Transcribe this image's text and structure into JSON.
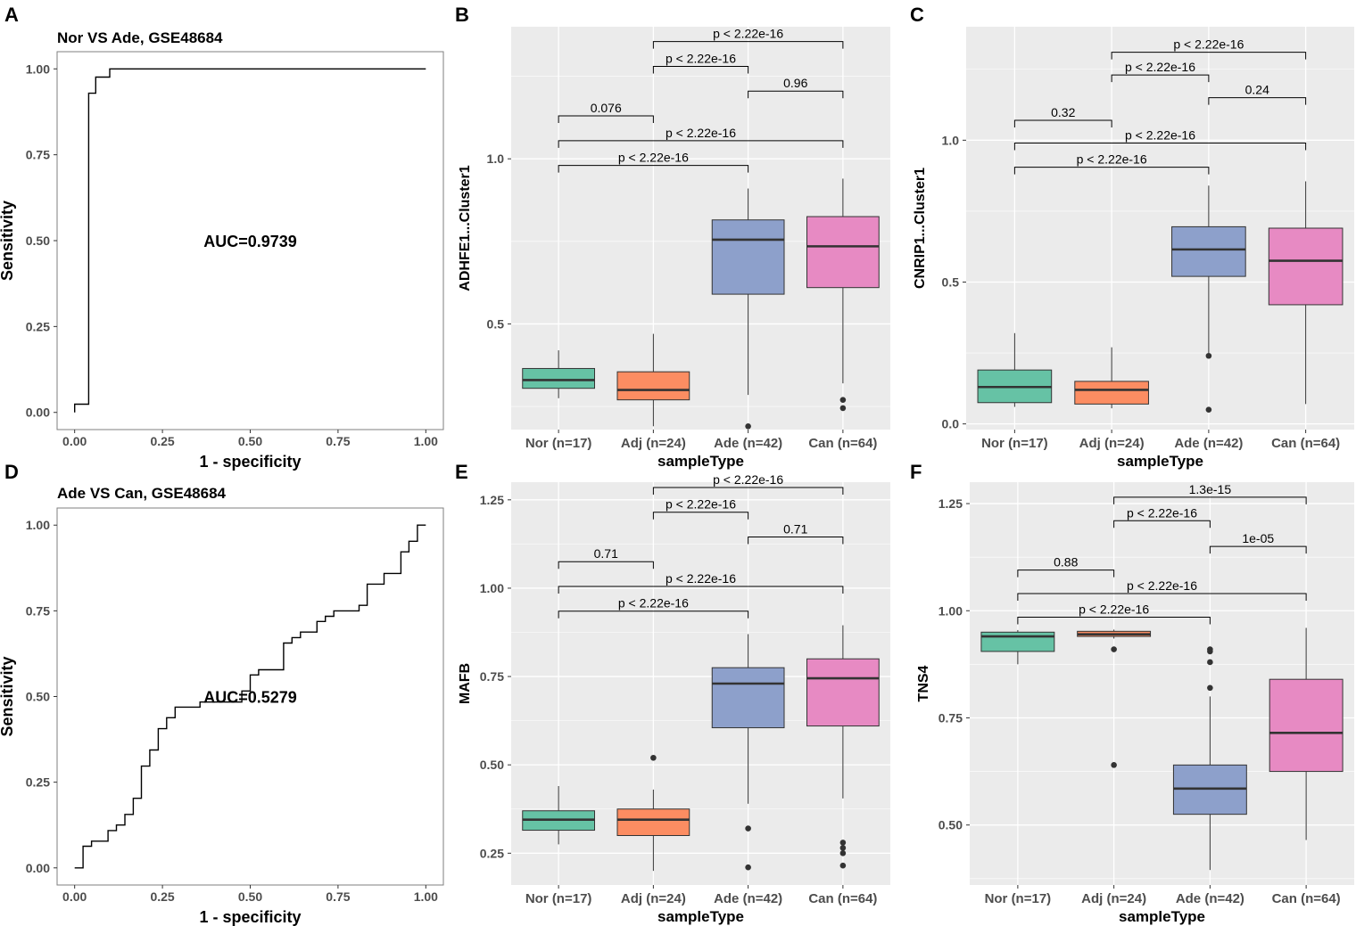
{
  "figure": {
    "colors": {
      "panel_bg": "#EBEBEB",
      "grid": "#FFFFFF",
      "axis_text": "#4D4D4D",
      "line": "#000000",
      "box_outline": "#333333",
      "group_fills": [
        "#66C2A5",
        "#FC8D62",
        "#8DA0CB",
        "#E78AC3"
      ]
    }
  },
  "chart_data": [
    {
      "id": "A",
      "type": "roc",
      "panel_label": "A",
      "title": "Nor VS Ade, GSE48684",
      "xlabel": "1 - specificity",
      "ylabel": "Sensitivity",
      "xlim": [
        0,
        1
      ],
      "ylim": [
        0,
        1
      ],
      "xticks": [
        "0.00",
        "0.25",
        "0.50",
        "0.75",
        "1.00"
      ],
      "yticks": [
        "0.00",
        "0.25",
        "0.50",
        "0.75",
        "1.00"
      ],
      "annotation": "AUC=0.9739",
      "annotation_at": [
        0.5,
        0.5
      ],
      "points": [
        [
          0,
          0
        ],
        [
          0,
          0.024
        ],
        [
          0.04,
          0.024
        ],
        [
          0.04,
          0.929
        ],
        [
          0.06,
          0.929
        ],
        [
          0.06,
          0.976
        ],
        [
          0.1,
          0.976
        ],
        [
          0.1,
          1
        ],
        [
          1,
          1
        ]
      ]
    },
    {
      "id": "B",
      "type": "boxplot",
      "panel_label": "B",
      "xlabel": "sampleType",
      "ylabel": "ADHFE1...Cluster1",
      "ylim": [
        0.18,
        1.4
      ],
      "yticks": [
        0.5,
        1.0
      ],
      "ytick_labels": [
        "0.5",
        "1.0"
      ],
      "categories": [
        "Nor (n=17)",
        "Adj (n=24)",
        "Ade (n=42)",
        "Can (n=64)"
      ],
      "boxes": [
        {
          "whisker_low": 0.275,
          "q1": 0.305,
          "median": 0.33,
          "q3": 0.365,
          "whisker_high": 0.42,
          "outliers": []
        },
        {
          "whisker_low": 0.19,
          "q1": 0.27,
          "median": 0.3,
          "q3": 0.355,
          "whisker_high": 0.47,
          "outliers": []
        },
        {
          "whisker_low": 0.285,
          "q1": 0.59,
          "median": 0.755,
          "q3": 0.815,
          "whisker_high": 0.91,
          "outliers": [
            0.19
          ]
        },
        {
          "whisker_low": 0.32,
          "q1": 0.61,
          "median": 0.735,
          "q3": 0.825,
          "whisker_high": 0.94,
          "outliers": [
            0.27,
            0.245
          ]
        }
      ],
      "comparisons": [
        {
          "from": 0,
          "to": 2,
          "label": "p < 2.22e-16",
          "y": 0.98
        },
        {
          "from": 0,
          "to": 3,
          "label": "p < 2.22e-16",
          "y": 1.055
        },
        {
          "from": 0,
          "to": 1,
          "label": "0.076",
          "y": 1.13
        },
        {
          "from": 2,
          "to": 3,
          "label": "0.96",
          "y": 1.205
        },
        {
          "from": 1,
          "to": 2,
          "label": "p < 2.22e-16",
          "y": 1.28
        },
        {
          "from": 1,
          "to": 3,
          "label": "p < 2.22e-16",
          "y": 1.355
        }
      ]
    },
    {
      "id": "C",
      "type": "boxplot",
      "panel_label": "C",
      "xlabel": "sampleType",
      "ylabel": "CNRIP1...Cluster1",
      "ylim": [
        -0.02,
        1.4
      ],
      "yticks": [
        0.0,
        0.5,
        1.0
      ],
      "ytick_labels": [
        "0.0",
        "0.5",
        "1.0"
      ],
      "categories": [
        "Nor (n=17)",
        "Adj (n=24)",
        "Ade (n=42)",
        "Can (n=64)"
      ],
      "boxes": [
        {
          "whisker_low": 0.06,
          "q1": 0.075,
          "median": 0.13,
          "q3": 0.19,
          "whisker_high": 0.32,
          "outliers": []
        },
        {
          "whisker_low": 0.055,
          "q1": 0.07,
          "median": 0.12,
          "q3": 0.15,
          "whisker_high": 0.27,
          "outliers": []
        },
        {
          "whisker_low": 0.25,
          "q1": 0.52,
          "median": 0.615,
          "q3": 0.695,
          "whisker_high": 0.84,
          "outliers": [
            0.24,
            0.05
          ]
        },
        {
          "whisker_low": 0.07,
          "q1": 0.42,
          "median": 0.575,
          "q3": 0.69,
          "whisker_high": 0.855,
          "outliers": []
        }
      ],
      "comparisons": [
        {
          "from": 0,
          "to": 2,
          "label": "p < 2.22e-16",
          "y": 0.905
        },
        {
          "from": 0,
          "to": 3,
          "label": "p < 2.22e-16",
          "y": 0.99
        },
        {
          "from": 0,
          "to": 1,
          "label": "0.32",
          "y": 1.07
        },
        {
          "from": 2,
          "to": 3,
          "label": "0.24",
          "y": 1.15
        },
        {
          "from": 1,
          "to": 2,
          "label": "p < 2.22e-16",
          "y": 1.23
        },
        {
          "from": 1,
          "to": 3,
          "label": "p < 2.22e-16",
          "y": 1.31
        }
      ]
    },
    {
      "id": "D",
      "type": "roc",
      "panel_label": "D",
      "title": "Ade VS Can, GSE48684",
      "xlabel": "1 - specificity",
      "ylabel": "Sensitivity",
      "xlim": [
        0,
        1
      ],
      "ylim": [
        0,
        1
      ],
      "xticks": [
        "0.00",
        "0.25",
        "0.50",
        "0.75",
        "1.00"
      ],
      "yticks": [
        "0.00",
        "0.25",
        "0.50",
        "0.75",
        "1.00"
      ],
      "annotation": "AUC=0.5279",
      "annotation_at": [
        0.5,
        0.5
      ],
      "points": [
        [
          0,
          0
        ],
        [
          0.024,
          0
        ],
        [
          0.024,
          0.063
        ],
        [
          0.048,
          0.063
        ],
        [
          0.048,
          0.078
        ],
        [
          0.095,
          0.078
        ],
        [
          0.095,
          0.109
        ],
        [
          0.119,
          0.109
        ],
        [
          0.119,
          0.125
        ],
        [
          0.143,
          0.125
        ],
        [
          0.143,
          0.156
        ],
        [
          0.167,
          0.156
        ],
        [
          0.167,
          0.203
        ],
        [
          0.19,
          0.203
        ],
        [
          0.19,
          0.297
        ],
        [
          0.214,
          0.297
        ],
        [
          0.214,
          0.344
        ],
        [
          0.238,
          0.344
        ],
        [
          0.238,
          0.406
        ],
        [
          0.262,
          0.406
        ],
        [
          0.262,
          0.438
        ],
        [
          0.286,
          0.438
        ],
        [
          0.286,
          0.469
        ],
        [
          0.357,
          0.469
        ],
        [
          0.357,
          0.484
        ],
        [
          0.476,
          0.484
        ],
        [
          0.476,
          0.516
        ],
        [
          0.5,
          0.516
        ],
        [
          0.5,
          0.563
        ],
        [
          0.524,
          0.563
        ],
        [
          0.524,
          0.578
        ],
        [
          0.595,
          0.578
        ],
        [
          0.595,
          0.656
        ],
        [
          0.619,
          0.656
        ],
        [
          0.619,
          0.672
        ],
        [
          0.643,
          0.672
        ],
        [
          0.643,
          0.688
        ],
        [
          0.69,
          0.688
        ],
        [
          0.69,
          0.719
        ],
        [
          0.714,
          0.719
        ],
        [
          0.714,
          0.734
        ],
        [
          0.738,
          0.734
        ],
        [
          0.738,
          0.75
        ],
        [
          0.81,
          0.75
        ],
        [
          0.81,
          0.766
        ],
        [
          0.833,
          0.766
        ],
        [
          0.833,
          0.828
        ],
        [
          0.881,
          0.828
        ],
        [
          0.881,
          0.859
        ],
        [
          0.929,
          0.859
        ],
        [
          0.929,
          0.922
        ],
        [
          0.952,
          0.922
        ],
        [
          0.952,
          0.953
        ],
        [
          0.976,
          0.953
        ],
        [
          0.976,
          1
        ],
        [
          1,
          1
        ]
      ]
    },
    {
      "id": "E",
      "type": "boxplot",
      "panel_label": "E",
      "xlabel": "sampleType",
      "ylabel": "MAFB",
      "ylim": [
        0.16,
        1.3
      ],
      "yticks": [
        0.25,
        0.5,
        0.75,
        1.0,
        1.25
      ],
      "ytick_labels": [
        "0.25",
        "0.50",
        "0.75",
        "1.00",
        "1.25"
      ],
      "categories": [
        "Nor (n=17)",
        "Adj (n=24)",
        "Ade (n=42)",
        "Can (n=64)"
      ],
      "boxes": [
        {
          "whisker_low": 0.275,
          "q1": 0.315,
          "median": 0.345,
          "q3": 0.37,
          "whisker_high": 0.44,
          "outliers": []
        },
        {
          "whisker_low": 0.2,
          "q1": 0.3,
          "median": 0.345,
          "q3": 0.375,
          "whisker_high": 0.43,
          "outliers": [
            0.52
          ]
        },
        {
          "whisker_low": 0.39,
          "q1": 0.605,
          "median": 0.73,
          "q3": 0.775,
          "whisker_high": 0.87,
          "outliers": [
            0.32,
            0.21
          ]
        },
        {
          "whisker_low": 0.405,
          "q1": 0.61,
          "median": 0.745,
          "q3": 0.8,
          "whisker_high": 0.895,
          "outliers": [
            0.28,
            0.265,
            0.25,
            0.215
          ]
        }
      ],
      "comparisons": [
        {
          "from": 0,
          "to": 2,
          "label": "p < 2.22e-16",
          "y": 0.935
        },
        {
          "from": 0,
          "to": 3,
          "label": "p < 2.22e-16",
          "y": 1.005
        },
        {
          "from": 0,
          "to": 1,
          "label": "0.71",
          "y": 1.075
        },
        {
          "from": 2,
          "to": 3,
          "label": "0.71",
          "y": 1.145
        },
        {
          "from": 1,
          "to": 2,
          "label": "p < 2.22e-16",
          "y": 1.215
        },
        {
          "from": 1,
          "to": 3,
          "label": "p < 2.22e-16",
          "y": 1.285
        }
      ]
    },
    {
      "id": "F",
      "type": "boxplot",
      "panel_label": "F",
      "xlabel": "sampleType",
      "ylabel": "TNS4",
      "ylim": [
        0.36,
        1.3
      ],
      "yticks": [
        0.5,
        0.75,
        1.0,
        1.25
      ],
      "ytick_labels": [
        "0.50",
        "0.75",
        "1.00",
        "1.25"
      ],
      "categories": [
        "Nor (n=17)",
        "Adj (n=24)",
        "Ade (n=42)",
        "Can (n=64)"
      ],
      "boxes": [
        {
          "whisker_low": 0.875,
          "q1": 0.905,
          "median": 0.94,
          "q3": 0.95,
          "whisker_high": 0.955,
          "outliers": []
        },
        {
          "whisker_low": 0.935,
          "q1": 0.94,
          "median": 0.945,
          "q3": 0.952,
          "whisker_high": 0.956,
          "outliers": [
            0.91,
            0.64
          ]
        },
        {
          "whisker_low": 0.395,
          "q1": 0.525,
          "median": 0.585,
          "q3": 0.64,
          "whisker_high": 0.8,
          "outliers": [
            0.91,
            0.905,
            0.88,
            0.82
          ]
        },
        {
          "whisker_low": 0.465,
          "q1": 0.625,
          "median": 0.715,
          "q3": 0.84,
          "whisker_high": 0.96,
          "outliers": []
        }
      ],
      "comparisons": [
        {
          "from": 0,
          "to": 2,
          "label": "p < 2.22e-16",
          "y": 0.985
        },
        {
          "from": 0,
          "to": 3,
          "label": "p < 2.22e-16",
          "y": 1.04
        },
        {
          "from": 0,
          "to": 1,
          "label": "0.88",
          "y": 1.095
        },
        {
          "from": 2,
          "to": 3,
          "label": "1e-05",
          "y": 1.15
        },
        {
          "from": 1,
          "to": 2,
          "label": "p < 2.22e-16",
          "y": 1.21
        },
        {
          "from": 1,
          "to": 3,
          "label": "1.3e-15",
          "y": 1.265
        }
      ]
    }
  ]
}
